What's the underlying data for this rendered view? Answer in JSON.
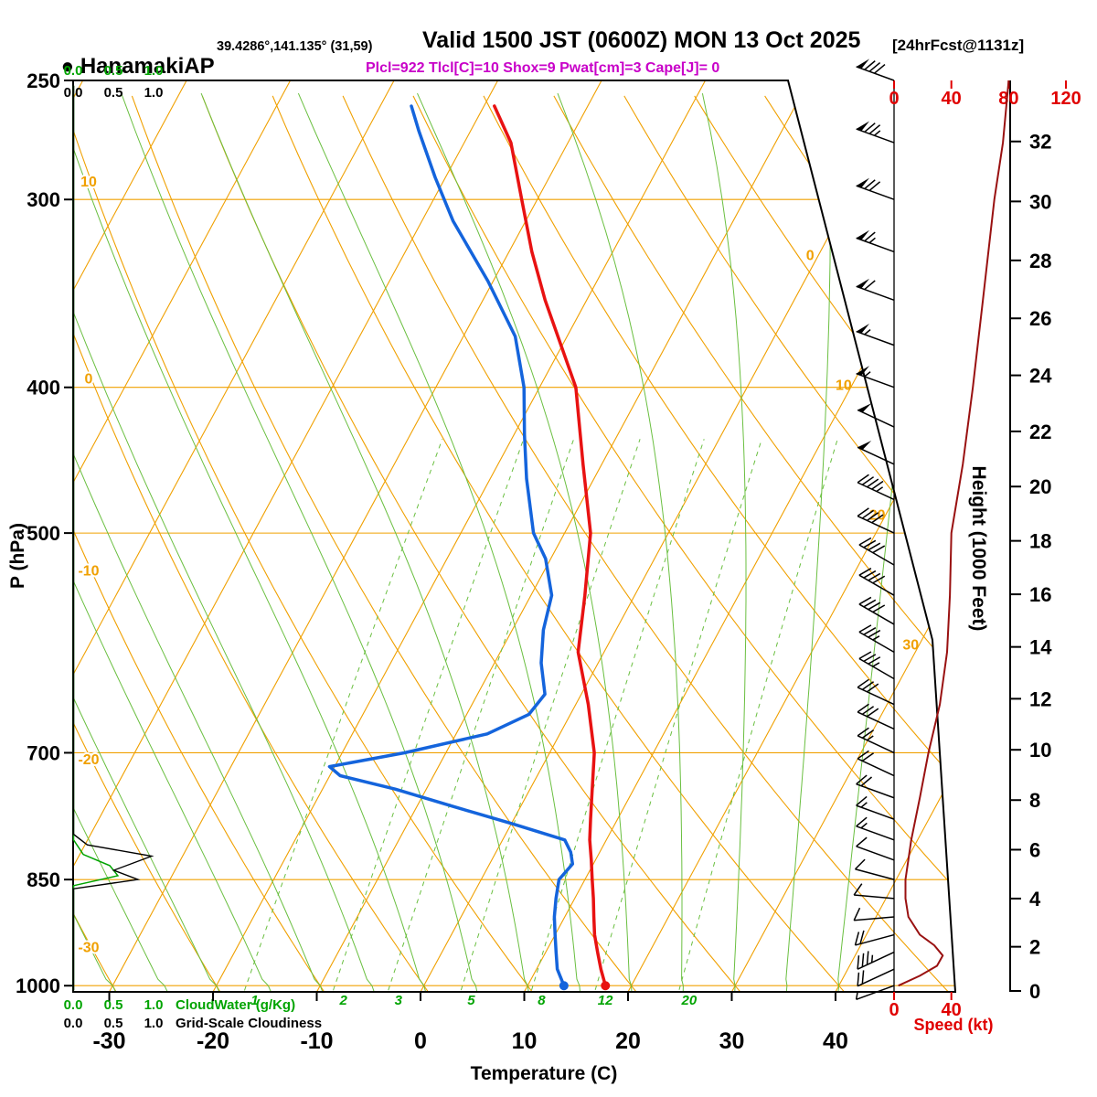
{
  "header": {
    "station_bullet": "●",
    "station_name": "HanamakiAP",
    "station_coords": "39.4286°,141.135° (31,59)",
    "valid_time": "Valid 1500 JST (0600Z) MON 13 Oct 2025",
    "forecast_tag": "[24hrFcst@1131z]",
    "indices_line": "Plcl=922 Tlcl[C]=10 Shox=9 Pwat[cm]=3 Cape[J]= 0"
  },
  "axis_titles": {
    "pressure": "P (hPa)",
    "temperature": "Temperature (C)",
    "height": "Height (1000 Feet)",
    "speed": "Speed (kt)"
  },
  "legends": {
    "cloudwater": "CloudWater (g/Kg)",
    "cloudiness": "Grid-Scale Cloudiness",
    "cloud_scale_ticks": [
      "0.0",
      "0.5",
      "1.0"
    ]
  },
  "chart_data": {
    "type": "line",
    "title": "Skew-T log-P sounding (emagram) with wind barbs, wind speed and cloud profiles",
    "pressure_ticks_hpa": [
      250,
      300,
      400,
      500,
      700,
      850,
      1000
    ],
    "temp_ticks_c": [
      -30,
      -20,
      -10,
      0,
      10,
      20,
      30,
      40
    ],
    "height_ticks_kft": [
      0,
      2,
      4,
      6,
      8,
      10,
      12,
      14,
      16,
      18,
      20,
      22,
      24,
      26,
      28,
      30,
      32
    ],
    "speed_ticks_top_kt": [
      0,
      40,
      80,
      120
    ],
    "speed_ticks_bottom_kt": [
      0,
      40
    ],
    "isotherm_right_labels_c": [
      0,
      10,
      20,
      30
    ],
    "dry_adiabat_left_labels_c": [
      10,
      0,
      -10,
      -20,
      -30
    ],
    "mixing_ratio_labels_g_kg": [
      1,
      2,
      3,
      5,
      8,
      12,
      20
    ],
    "temperature_profile": {
      "pressure_hpa": [
        1000,
        975,
        950,
        925,
        900,
        875,
        850,
        825,
        800,
        775,
        750,
        700,
        650,
        600,
        550,
        500,
        450,
        400,
        350,
        325,
        300,
        275,
        260
      ],
      "temp_c": [
        17.5,
        16.2,
        15.0,
        13.8,
        12.8,
        11.8,
        10.7,
        9.6,
        8.4,
        7.4,
        6.4,
        4.3,
        1.2,
        -2.5,
        -4.8,
        -7.5,
        -11.8,
        -16.5,
        -24.0,
        -27.8,
        -31.5,
        -35.5,
        -39.0
      ]
    },
    "dewpoint_profile": {
      "pressure_hpa": [
        1000,
        975,
        950,
        925,
        900,
        875,
        850,
        830,
        815,
        800,
        780,
        760,
        740,
        725,
        715,
        700,
        680,
        660,
        640,
        610,
        580,
        550,
        520,
        500,
        460,
        430,
        400,
        370,
        340,
        310,
        290,
        270,
        260
      ],
      "temp_c": [
        13.5,
        12.0,
        11.0,
        10.0,
        9.0,
        8.2,
        7.5,
        8.0,
        7.2,
        6.0,
        0.0,
        -6.5,
        -13.0,
        -19.0,
        -20.5,
        -14.0,
        -7.0,
        -4.0,
        -3.5,
        -5.5,
        -7.0,
        -8.0,
        -10.5,
        -13.0,
        -16.5,
        -19.0,
        -21.5,
        -25.0,
        -30.5,
        -37.0,
        -41.0,
        -45.0,
        -47.0
      ]
    },
    "wind_speed_profile": {
      "pressure_hpa": [
        1000,
        985,
        970,
        955,
        940,
        925,
        900,
        875,
        850,
        800,
        750,
        700,
        650,
        600,
        550,
        500,
        450,
        400,
        350,
        300,
        275,
        250
      ],
      "speed_kt": [
        3,
        18,
        30,
        34,
        28,
        18,
        10,
        8,
        8,
        12,
        18,
        24,
        32,
        37,
        39,
        40,
        48,
        55,
        62,
        70,
        76,
        80
      ]
    },
    "wind_barbs": [
      {
        "p": 1000,
        "spd": 5,
        "dir": 250
      },
      {
        "p": 975,
        "spd": 20,
        "dir": 245
      },
      {
        "p": 950,
        "spd": 35,
        "dir": 245
      },
      {
        "p": 925,
        "spd": 20,
        "dir": 255
      },
      {
        "p": 900,
        "spd": 10,
        "dir": 265
      },
      {
        "p": 875,
        "spd": 10,
        "dir": 275
      },
      {
        "p": 850,
        "spd": 10,
        "dir": 285
      },
      {
        "p": 825,
        "spd": 10,
        "dir": 290
      },
      {
        "p": 800,
        "spd": 15,
        "dir": 290
      },
      {
        "p": 775,
        "spd": 15,
        "dir": 290
      },
      {
        "p": 750,
        "spd": 20,
        "dir": 290
      },
      {
        "p": 725,
        "spd": 20,
        "dir": 295
      },
      {
        "p": 700,
        "spd": 25,
        "dir": 295
      },
      {
        "p": 675,
        "spd": 30,
        "dir": 295
      },
      {
        "p": 650,
        "spd": 30,
        "dir": 295
      },
      {
        "p": 625,
        "spd": 35,
        "dir": 300
      },
      {
        "p": 600,
        "spd": 35,
        "dir": 300
      },
      {
        "p": 575,
        "spd": 40,
        "dir": 300
      },
      {
        "p": 550,
        "spd": 40,
        "dir": 300
      },
      {
        "p": 525,
        "spd": 40,
        "dir": 300
      },
      {
        "p": 500,
        "spd": 40,
        "dir": 295
      },
      {
        "p": 475,
        "spd": 45,
        "dir": 295
      },
      {
        "p": 450,
        "spd": 50,
        "dir": 295
      },
      {
        "p": 425,
        "spd": 50,
        "dir": 295
      },
      {
        "p": 400,
        "spd": 55,
        "dir": 290
      },
      {
        "p": 375,
        "spd": 55,
        "dir": 290
      },
      {
        "p": 350,
        "spd": 60,
        "dir": 290
      },
      {
        "p": 325,
        "spd": 65,
        "dir": 290
      },
      {
        "p": 300,
        "spd": 70,
        "dir": 290
      },
      {
        "p": 275,
        "spd": 75,
        "dir": 290
      },
      {
        "p": 250,
        "spd": 80,
        "dir": 290
      }
    ],
    "cloudiness_profile": {
      "pressure_hpa": [
        1007,
        862,
        850,
        838,
        820,
        806,
        793,
        252
      ],
      "value": [
        0,
        0,
        0.8,
        0.5,
        0.97,
        0.17,
        0,
        0
      ]
    },
    "cloudwater_profile": {
      "pressure_hpa": [
        1007,
        858,
        845,
        832,
        818,
        800,
        252
      ],
      "value_g_kg": [
        0,
        0,
        0.55,
        0.45,
        0.12,
        0,
        0
      ]
    },
    "colors": {
      "grid_orange": "#f0a000",
      "moist_green": "#6abf40",
      "scale_green": "#00a400",
      "temperature_red": "#e81212",
      "dewpoint_blue": "#1464dc",
      "speed_dark_red": "#991111",
      "axis_red": "#e00000",
      "indices_magenta": "#c800c8",
      "barb_black": "#000000"
    }
  }
}
